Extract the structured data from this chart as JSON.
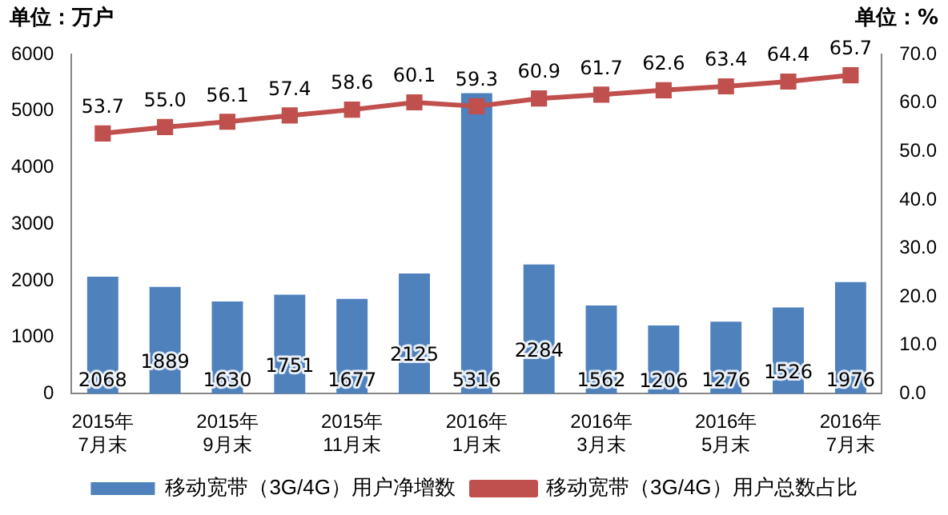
{
  "chart_data": {
    "type": "bar",
    "ylabel": "单位：万户",
    "y2label": "单位：%",
    "categories": [
      "2015年\n7月末",
      null,
      "2015年\n9月末",
      null,
      "2015年\n11月末",
      null,
      "2016年\n1月末",
      null,
      "2016年\n3月末",
      null,
      "2016年\n5月末",
      null,
      "2016年\n7月末"
    ],
    "series": [
      {
        "name": "移动宽带（3G/4G）用户净增数",
        "color": "#4f81bd",
        "values": [
          2068,
          1889,
          1630,
          1751,
          1677,
          2125,
          5316,
          2284,
          1562,
          1206,
          1276,
          1526,
          1976
        ]
      },
      {
        "name": "移动宽带（3G/4G）用户总数占比",
        "type": "line",
        "axis": "y2",
        "color": "#c0504d",
        "marker": "square",
        "values": [
          53.7,
          55.0,
          56.1,
          57.4,
          58.6,
          60.1,
          59.3,
          60.9,
          61.7,
          62.6,
          63.4,
          64.4,
          65.7
        ],
        "value_labels": [
          "53.7",
          "55.0",
          "56.1",
          "57.4",
          "58.6",
          "60.1",
          "59.3",
          "60.9",
          "61.7",
          "62.6",
          "63.4",
          "64.4",
          "65.7"
        ]
      }
    ],
    "ylim": [
      0,
      6000
    ],
    "yticks": [
      0,
      1000,
      2000,
      3000,
      4000,
      5000,
      6000
    ],
    "y2lim": [
      0,
      70
    ],
    "y2ticks": [
      {
        "value": 0,
        "label": "0.0"
      },
      {
        "value": 10,
        "label": "10.0"
      },
      {
        "value": 20,
        "label": "20.0"
      },
      {
        "value": 30,
        "label": "30.0"
      },
      {
        "value": 40,
        "label": "40.0"
      },
      {
        "value": 50,
        "label": "50.0"
      },
      {
        "value": 60,
        "label": "60.0"
      },
      {
        "value": 70,
        "label": "70.0"
      }
    ],
    "data_labels": true,
    "grid": false,
    "legend": "bottom"
  }
}
